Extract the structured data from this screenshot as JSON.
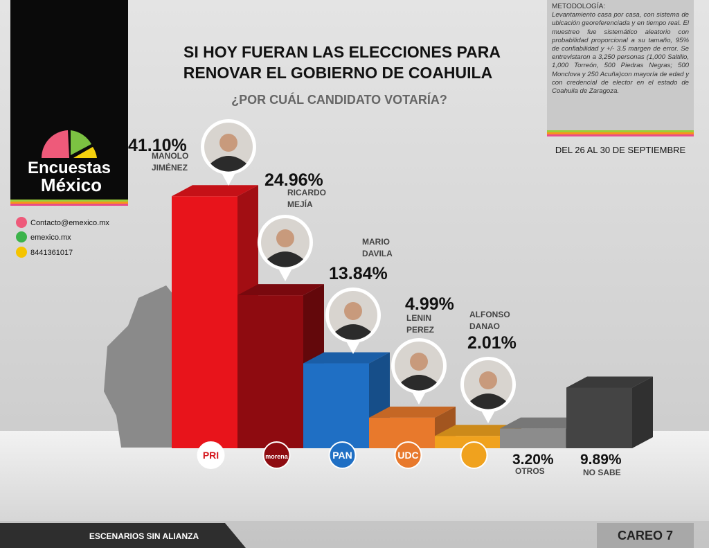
{
  "brand": {
    "line1": "Encuestas",
    "line2": "México"
  },
  "contact": [
    "Contacto@emexico.mx",
    "emexico.mx",
    "8441361017"
  ],
  "methodology": {
    "title": "METODOLOGÍA:",
    "text": "Levantamiento casa por casa, con sistema de ubicación georeferenciada y en tiempo real. El muestreo fue sistemático aleatorio con probabilidad proporcional a su tamaño, 95% de confiabilidad y +/- 3.5 margen de error. Se entrevistaron a 3,250 personas (1,000 Saltillo, 1,000 Torreón, 500 Piedras Negras; 500 Monclova y 250 Acuña)con mayoría de edad y con credencial de elector en el estado de Coahuila de Zaragoza."
  },
  "date": "DEL 26 AL 30 DE SEPTIEMBRE",
  "footer": {
    "left": "ESCENARIOS SIN ALIANZA",
    "right": "CAREO 7"
  },
  "chart_data": {
    "type": "bar",
    "title": [
      "SI HOY FUERAN LAS ELECCIONES PARA",
      "RENOVAR EL GOBIERNO DE COAHUILA"
    ],
    "subtitle": "¿POR CUÁL CANDIDATO VOTARÍA?",
    "categories": [
      [
        "MANOLO",
        "JIMÉNEZ"
      ],
      [
        "RICARDO",
        "MEJÍA"
      ],
      [
        "MARIO",
        "DAVILA"
      ],
      [
        "LENIN",
        "PEREZ"
      ],
      [
        "ALFONSO",
        "DANAO"
      ],
      [
        "OTROS"
      ],
      [
        "NO SABE"
      ]
    ],
    "values": [
      41.1,
      24.96,
      13.84,
      4.99,
      2.01,
      3.2,
      9.89
    ],
    "value_labels": [
      "41.10%",
      "24.96%",
      "13.84%",
      "4.99%",
      "2.01%",
      "3.20%",
      "9.89%"
    ],
    "parties": [
      "PRI",
      "morena",
      "PAN",
      "UDC",
      null,
      null,
      null
    ],
    "colors": [
      "#e8141b",
      "#8e0b10",
      "#1f6fc4",
      "#e8792c",
      "#f0a21e",
      "#8c8c8c",
      "#444444"
    ]
  }
}
